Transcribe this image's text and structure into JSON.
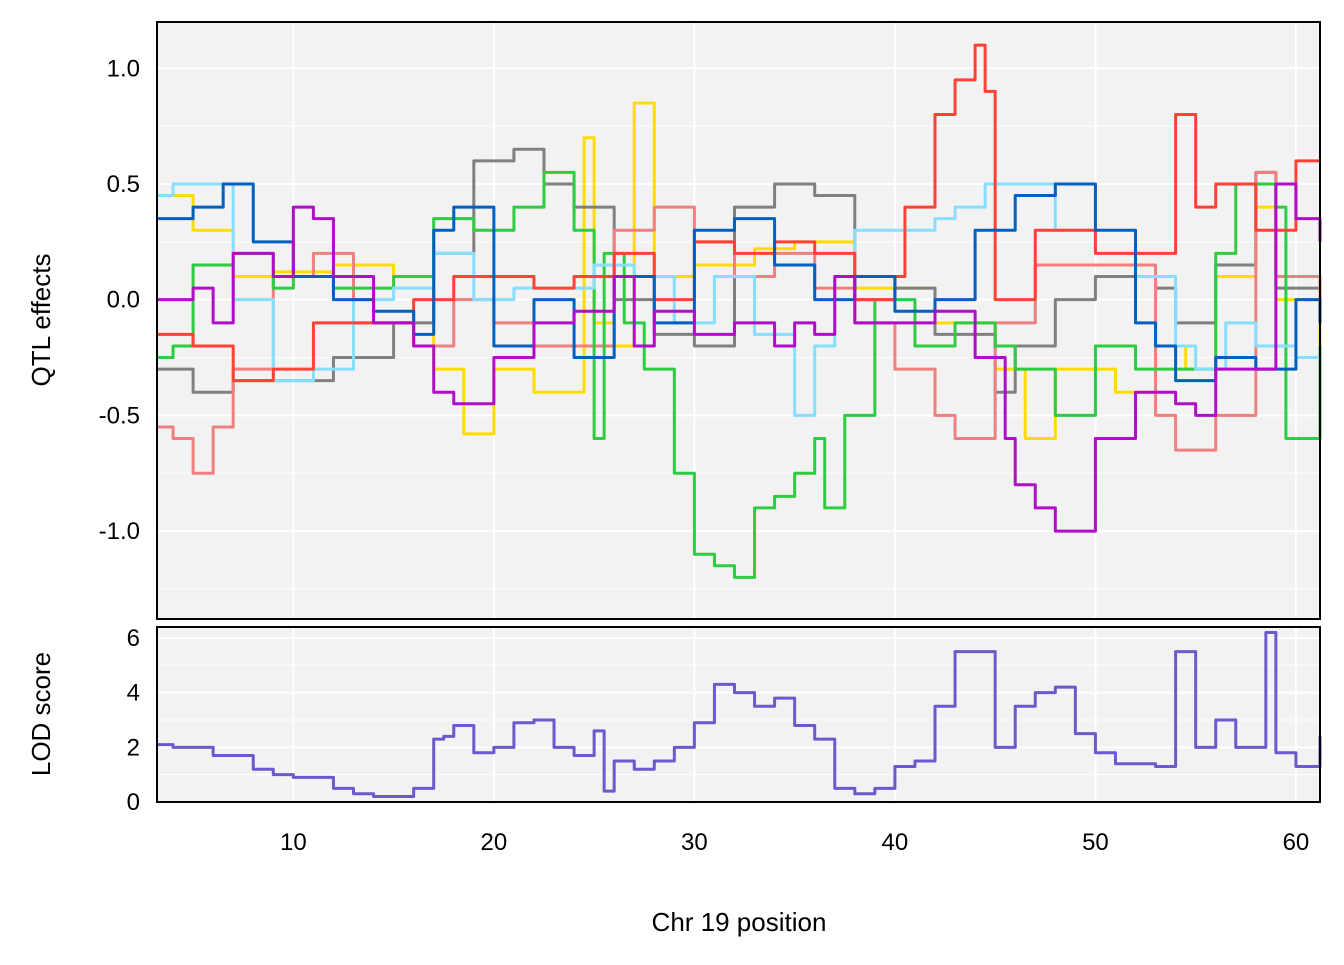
{
  "chart_data": [
    {
      "type": "line",
      "ylabel": "QTL effects",
      "xlim": [
        3.2,
        61.2
      ],
      "ylim": [
        -1.38,
        1.2
      ],
      "xticks": [
        10,
        20,
        30,
        40,
        50,
        60
      ],
      "yticks": [
        1.0,
        0.5,
        0.0,
        -0.5,
        -1.0
      ],
      "ytick_labels": [
        "1.0",
        "0.5",
        "0.0",
        "-0.5",
        "-1.0"
      ],
      "grid": true,
      "series": [
        {
          "color": "#FFDC00",
          "x": [
            3.2,
            5,
            7,
            9,
            12,
            15,
            17,
            18.5,
            20,
            22,
            24.5,
            25,
            26,
            27,
            28,
            30,
            33,
            35,
            38,
            42,
            45,
            46.5,
            48,
            51,
            53,
            54.5,
            56,
            58,
            59,
            61.2
          ],
          "y": [
            0.45,
            0.3,
            0.1,
            0.12,
            0.15,
            0.1,
            -0.3,
            -0.58,
            -0.3,
            -0.4,
            0.7,
            -0.1,
            -0.2,
            0.85,
            0.1,
            0.15,
            0.22,
            0.25,
            0.05,
            -0.1,
            -0.3,
            -0.6,
            -0.3,
            -0.4,
            -0.2,
            -0.3,
            0.1,
            0.4,
            0.0,
            -0.2
          ]
        },
        {
          "color": "#808080",
          "x": [
            3.2,
            5,
            7,
            9,
            12,
            15,
            17,
            19,
            21,
            22.5,
            24,
            26,
            28,
            30,
            32,
            34,
            36,
            38,
            40,
            42,
            45,
            46,
            48,
            50,
            53,
            54,
            56,
            58,
            59,
            61.2
          ],
          "y": [
            -0.3,
            -0.4,
            -0.35,
            -0.35,
            -0.25,
            -0.1,
            0.2,
            0.6,
            0.65,
            0.5,
            0.4,
            0.0,
            -0.15,
            -0.2,
            0.4,
            0.5,
            0.45,
            0.0,
            0.05,
            -0.15,
            -0.4,
            -0.2,
            0.0,
            0.1,
            0.05,
            -0.1,
            0.15,
            0.55,
            0.05,
            0.1
          ]
        },
        {
          "color": "#F08080",
          "x": [
            3.2,
            4,
            5,
            6,
            7,
            9,
            11,
            13,
            16,
            18,
            20,
            22,
            24,
            26,
            28,
            30,
            32,
            34,
            36,
            38,
            40,
            42,
            43,
            45,
            47,
            50,
            53,
            54,
            56,
            58,
            59,
            61.2
          ],
          "y": [
            -0.55,
            -0.6,
            -0.75,
            -0.55,
            -0.3,
            0.1,
            0.2,
            -0.1,
            -0.2,
            0.0,
            -0.1,
            -0.2,
            -0.2,
            0.3,
            0.4,
            0.25,
            0.1,
            0.2,
            0.05,
            -0.1,
            -0.3,
            -0.5,
            -0.6,
            -0.1,
            0.15,
            0.15,
            -0.5,
            -0.65,
            -0.5,
            0.55,
            0.1,
            -0.1
          ]
        },
        {
          "color": "#2ECC40",
          "x": [
            3.2,
            4,
            5,
            7,
            9,
            10,
            12,
            15,
            17,
            19,
            21,
            22.5,
            24,
            25,
            25.5,
            26.5,
            27.5,
            29,
            30,
            31,
            32,
            33,
            34,
            35,
            36,
            36.5,
            37.5,
            39,
            41,
            43,
            45,
            46,
            48,
            50,
            52,
            54,
            56,
            57,
            59,
            59.5,
            61.2
          ],
          "y": [
            -0.25,
            -0.2,
            0.15,
            0.2,
            0.05,
            0.1,
            0.05,
            0.1,
            0.35,
            0.3,
            0.4,
            0.55,
            0.3,
            -0.6,
            0.2,
            -0.1,
            -0.3,
            -0.75,
            -1.1,
            -1.15,
            -1.2,
            -0.9,
            -0.85,
            -0.75,
            -0.6,
            -0.9,
            -0.5,
            0.0,
            -0.2,
            -0.1,
            -0.2,
            -0.3,
            -0.5,
            -0.2,
            -0.3,
            -0.3,
            0.2,
            0.5,
            0.4,
            -0.6,
            -0.2
          ]
        },
        {
          "color": "#87DEFF",
          "x": [
            3.2,
            4,
            5,
            6,
            7,
            9,
            11,
            13,
            15,
            17,
            19,
            21,
            23,
            25,
            27,
            29,
            31,
            33,
            35,
            36,
            37,
            38,
            40,
            42,
            43,
            44.5,
            46,
            48,
            50,
            52,
            54,
            55,
            56.5,
            58,
            60,
            61.2
          ],
          "y": [
            0.45,
            0.5,
            0.5,
            0.5,
            0.0,
            -0.35,
            -0.3,
            0.0,
            0.05,
            0.2,
            0.0,
            0.05,
            0.05,
            0.15,
            0.1,
            -0.1,
            0.1,
            -0.15,
            -0.5,
            -0.2,
            0.1,
            0.3,
            0.3,
            0.35,
            0.4,
            0.5,
            0.5,
            0.3,
            0.2,
            0.1,
            -0.2,
            -0.3,
            -0.1,
            -0.2,
            -0.25,
            -0.25
          ]
        },
        {
          "color": "#FF4136",
          "x": [
            3.2,
            5,
            7,
            9,
            11,
            13,
            16,
            18,
            20,
            22,
            24,
            26,
            28,
            30,
            32,
            34,
            36,
            38,
            40,
            40.5,
            42,
            43,
            44,
            44.5,
            45,
            47,
            50,
            53,
            54,
            55,
            56,
            58,
            60,
            61.2
          ],
          "y": [
            -0.15,
            -0.2,
            -0.35,
            -0.3,
            -0.1,
            -0.1,
            0.0,
            0.1,
            0.1,
            0.05,
            0.1,
            0.2,
            0.0,
            0.25,
            0.2,
            0.25,
            0.2,
            0.0,
            0.1,
            0.4,
            0.8,
            0.95,
            1.1,
            0.9,
            0.0,
            0.3,
            0.2,
            0.2,
            0.8,
            0.4,
            0.5,
            0.3,
            0.6,
            0.6
          ]
        },
        {
          "color": "#0060C0",
          "x": [
            3.2,
            5,
            6.5,
            8,
            10,
            12,
            14,
            16,
            17,
            18,
            20,
            22,
            24,
            26,
            28,
            30,
            32,
            34,
            36,
            38,
            40,
            42,
            44,
            46,
            48,
            50,
            52,
            53,
            54,
            56,
            58,
            60,
            61.2
          ],
          "y": [
            0.35,
            0.4,
            0.5,
            0.25,
            0.1,
            0.0,
            -0.05,
            -0.15,
            0.3,
            0.4,
            -0.2,
            0.0,
            -0.25,
            0.1,
            -0.1,
            0.3,
            0.35,
            0.15,
            0.0,
            0.1,
            -0.05,
            0.0,
            0.3,
            0.45,
            0.5,
            0.3,
            -0.1,
            -0.2,
            -0.35,
            -0.25,
            -0.3,
            0.0,
            -0.1
          ]
        },
        {
          "color": "#B10DC9",
          "x": [
            3.2,
            5,
            6,
            7,
            9,
            10,
            11,
            12,
            14,
            16,
            17,
            18,
            20,
            22,
            24,
            26,
            27,
            28,
            30,
            32,
            34,
            35,
            36,
            37,
            38,
            40,
            42,
            44,
            45.5,
            46,
            47,
            48,
            50,
            52,
            54,
            55,
            56,
            58,
            59,
            60,
            61.2
          ],
          "y": [
            0.0,
            0.05,
            -0.1,
            0.2,
            0.1,
            0.4,
            0.35,
            0.1,
            -0.1,
            -0.2,
            -0.4,
            -0.45,
            -0.25,
            -0.1,
            -0.05,
            0.1,
            -0.2,
            -0.05,
            -0.15,
            -0.1,
            -0.2,
            -0.1,
            -0.15,
            0.1,
            -0.1,
            -0.1,
            -0.05,
            -0.25,
            -0.6,
            -0.8,
            -0.9,
            -1.0,
            -0.6,
            -0.4,
            -0.45,
            -0.5,
            -0.3,
            -0.3,
            0.5,
            0.35,
            0.25
          ]
        }
      ]
    },
    {
      "type": "line",
      "ylabel": "LOD score",
      "xlabel": "Chr 19 position",
      "xlim": [
        3.2,
        61.2
      ],
      "ylim": [
        0,
        6.4
      ],
      "xticks": [
        10,
        20,
        30,
        40,
        50,
        60
      ],
      "yticks": [
        0,
        2,
        4,
        6
      ],
      "grid": true,
      "series": [
        {
          "color": "#6A5ACD",
          "x": [
            3.2,
            4,
            5,
            6,
            7,
            8,
            9,
            10,
            11,
            12,
            13,
            14,
            15,
            16,
            17,
            17.5,
            18,
            19,
            20,
            21,
            22,
            23,
            24,
            25,
            25.5,
            26,
            27,
            28,
            29,
            30,
            31,
            32,
            33,
            34,
            35,
            36,
            37,
            38,
            39,
            40,
            41,
            42,
            43,
            44,
            45,
            46,
            47,
            48,
            49,
            50,
            51,
            52,
            53,
            54,
            55,
            56,
            57,
            58,
            58.5,
            59,
            60,
            61.2
          ],
          "y": [
            2.1,
            2.0,
            2.0,
            1.7,
            1.7,
            1.2,
            1.0,
            0.9,
            0.9,
            0.5,
            0.3,
            0.2,
            0.2,
            0.5,
            2.3,
            2.4,
            2.8,
            1.8,
            2.0,
            2.9,
            3.0,
            2.0,
            1.7,
            2.6,
            0.4,
            1.5,
            1.2,
            1.5,
            2.0,
            2.9,
            4.3,
            4.0,
            3.5,
            3.8,
            2.8,
            2.3,
            0.5,
            0.3,
            0.5,
            1.3,
            1.5,
            3.5,
            5.5,
            5.5,
            2.0,
            3.5,
            4.0,
            4.2,
            2.5,
            1.8,
            1.4,
            1.4,
            1.3,
            5.5,
            2.0,
            3.0,
            2.0,
            2.0,
            6.2,
            1.8,
            1.3,
            2.4
          ]
        }
      ]
    }
  ]
}
